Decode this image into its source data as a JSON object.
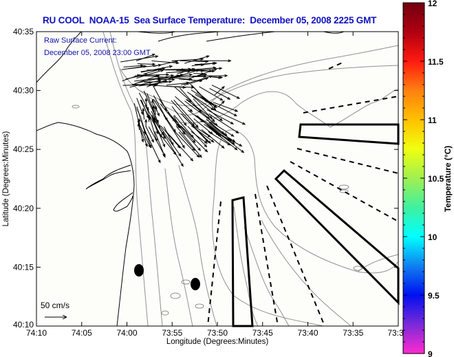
{
  "title": "RU COOL  NOAA-15  Sea Surface Temperature:  December 05, 2008 2225 GMT",
  "overlay": {
    "line1": "Raw Surface Current:",
    "line2": "December 05, 2008 23:00 GMT"
  },
  "scale_legend": {
    "label": "50 cm/s",
    "arrow_icon": "right-arrow-icon"
  },
  "colorbar": {
    "title": "Temperature (°C)",
    "min": 9,
    "max": 12,
    "tick_labels": [
      "12",
      "11.5",
      "11",
      "10.5",
      "10",
      "9.5",
      "9"
    ],
    "tick_values": [
      12,
      11.5,
      11,
      10.5,
      10,
      9.5,
      9
    ],
    "colors": [
      "#ff2ad0",
      "#7a2ad8",
      "#0010f0",
      "#1080f0",
      "#00ffff",
      "#40f0a0",
      "#a0f050",
      "#f0ff10",
      "#ffc000",
      "#ff8010",
      "#ff1a10",
      "#b00010",
      "#700010"
    ]
  },
  "axes": {
    "xlabel": "Longitude (Degrees:Minutes)",
    "ylabel": "Latitude (Degrees:Minutes)",
    "x_ticks": [
      "74:10",
      "74:05",
      "74:00",
      "73:55",
      "73:50",
      "73:45",
      "73:40",
      "73:35",
      "73:3"
    ],
    "y_ticks": [
      "40:35",
      "40:30",
      "40:25",
      "40:20",
      "40:15",
      "40:10"
    ]
  },
  "colors": {
    "title": "#1010c0",
    "overlay_text": "#1010b0",
    "contour": "#909090",
    "coast": "#000000"
  }
}
